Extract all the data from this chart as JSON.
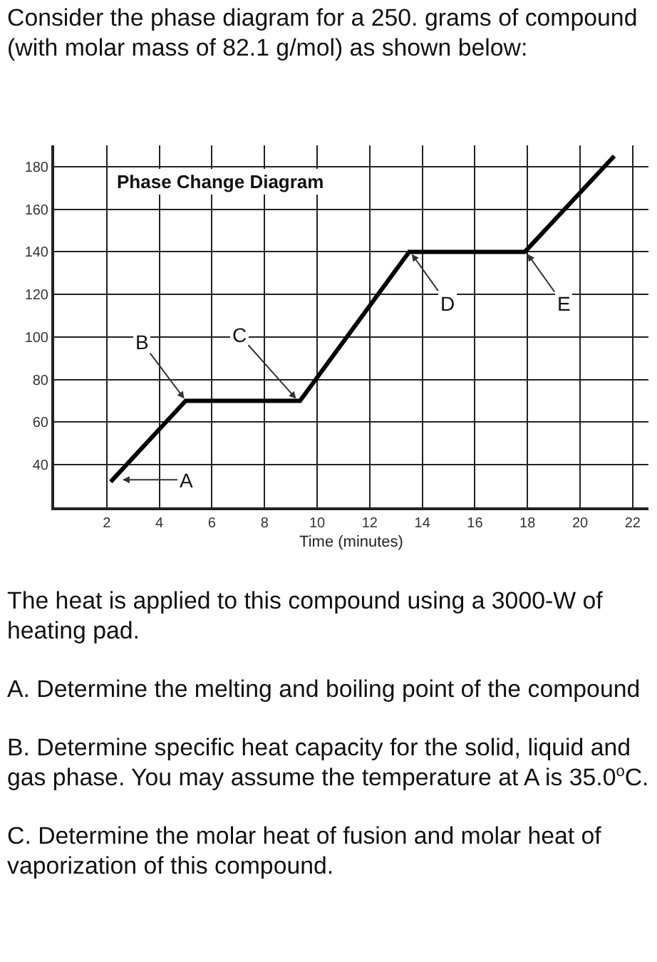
{
  "chart_data": {
    "type": "line",
    "title": "Phase Change Diagram",
    "xlabel": "Time (minutes)",
    "x": [
      2.15,
      5.0,
      9.35,
      13.5,
      17.9,
      21.3
    ],
    "values": [
      32,
      70,
      70,
      140,
      140,
      185
    ],
    "color": "#000000",
    "line_style": "solid",
    "xlim": [
      0,
      22.6
    ],
    "xticks": [
      2,
      4,
      6,
      8,
      10,
      12,
      14,
      16,
      18,
      20,
      22
    ],
    "ylim": [
      20,
      190
    ],
    "yticks": [
      40,
      60,
      80,
      100,
      120,
      140,
      160,
      180
    ],
    "grid": true,
    "annotations": [
      "Consider the phase diagram for a 250. grams of compound (with molar mass of 82.1 g/mol) as shown below:",
      {
        "text": "A",
        "x": 2.6,
        "y": 33
      },
      {
        "text": "B",
        "x": 4.95,
        "y": 71
      },
      {
        "text": "C",
        "x": 9.2,
        "y": 71
      },
      {
        "text": "D",
        "x": 13.6,
        "y": 139
      },
      {
        "text": "E",
        "x": 18.0,
        "y": 139
      },
      "The heat is applied to this compound using a 3000-W of heating pad.",
      "A. Determine the melting and boiling point of the compound",
      "B. Determine specific heat capacity for the solid, liquid and gas phase. You may assume the temperature at A is 35.0$^{o}$C.",
      "C. Determine the molar heat of fusion and molar heat of vaporization of this compound."
    ]
  }
}
